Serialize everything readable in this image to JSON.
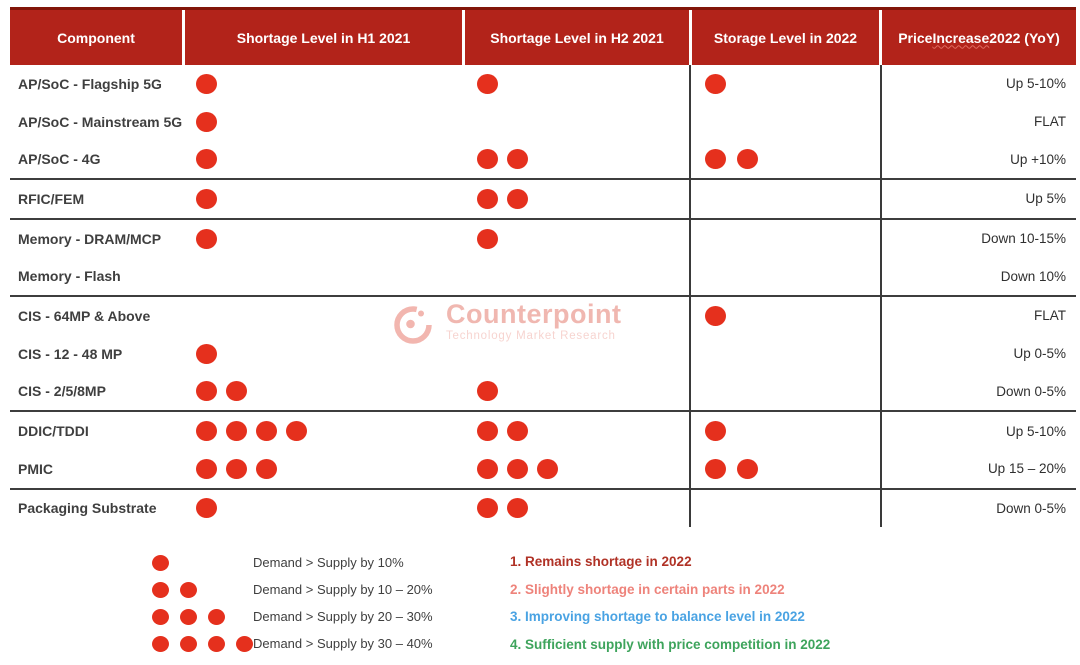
{
  "table": {
    "headers": [
      "Component",
      "Shortage Level in H1 2021",
      "Shortage Level in H2 2021",
      "Storage Level in 2022"
    ],
    "price_header": {
      "pre": "Price ",
      "underlined": "Increase",
      "post": " 2022 (YoY)"
    },
    "rows": [
      {
        "component": "AP/SoC - Flagship 5G",
        "h1": 1,
        "h2": 1,
        "storage": 1,
        "price": "Up 5-10%",
        "divider_after": false
      },
      {
        "component": "AP/SoC - Mainstream 5G",
        "h1": 1,
        "h2": 0,
        "storage": 0,
        "price": "FLAT",
        "divider_after": false
      },
      {
        "component": "AP/SoC - 4G",
        "h1": 1,
        "h2": 2,
        "storage": 2,
        "price": "Up +10%",
        "divider_after": true
      },
      {
        "component": "RFIC/FEM",
        "h1": 1,
        "h2": 2,
        "storage": 0,
        "price": "Up 5%",
        "divider_after": true
      },
      {
        "component": "Memory - DRAM/MCP",
        "h1": 1,
        "h2": 1,
        "storage": 0,
        "price": "Down 10-15%",
        "divider_after": false
      },
      {
        "component": "Memory - Flash",
        "h1": 0,
        "h2": 0,
        "storage": 0,
        "price": "Down 10%",
        "divider_after": true
      },
      {
        "component": "CIS - 64MP & Above",
        "h1": 0,
        "h2": 0,
        "storage": 1,
        "price": "FLAT",
        "divider_after": false
      },
      {
        "component": "CIS - 12 - 48 MP",
        "h1": 1,
        "h2": 0,
        "storage": 0,
        "price": "Up 0-5%",
        "divider_after": false
      },
      {
        "component": "CIS - 2/5/8MP",
        "h1": 2,
        "h2": 1,
        "storage": 0,
        "price": "Down 0-5%",
        "divider_after": true
      },
      {
        "component": "DDIC/TDDI",
        "h1": 4,
        "h2": 2,
        "storage": 1,
        "price": "Up 5-10%",
        "divider_after": false
      },
      {
        "component": "PMIC",
        "h1": 3,
        "h2": 3,
        "storage": 2,
        "price": "Up 15 – 20%",
        "divider_after": true
      },
      {
        "component": "Packaging Substrate",
        "h1": 1,
        "h2": 2,
        "storage": 0,
        "price": "Down 0-5%",
        "divider_after": false
      }
    ]
  },
  "legend": {
    "items": [
      {
        "dots": 1,
        "label": "Demand > Supply by 10%"
      },
      {
        "dots": 2,
        "label": "Demand > Supply by 10 – 20%"
      },
      {
        "dots": 3,
        "label": "Demand > Supply by 20 – 30%"
      },
      {
        "dots": 4,
        "label": "Demand > Supply by 30 – 40%"
      }
    ]
  },
  "notes": [
    {
      "text": "1. Remains shortage in 2022",
      "color": "#b03226"
    },
    {
      "text": "2. Slightly shortage in certain parts in 2022",
      "color": "#ee837b"
    },
    {
      "text": "3. Improving shortage to balance level in 2022",
      "color": "#4aa3e3"
    },
    {
      "text": "4. Sufficient supply with price competition in 2022",
      "color": "#3ea45c"
    }
  ],
  "watermark": {
    "brand": "Counterpoint",
    "tagline": "Technology Market Research"
  },
  "colors": {
    "header_bg": "#b2231a",
    "dot_red": "#e5301d",
    "divider": "#3d3d3d",
    "label_text": "#3f3f3f"
  },
  "chart_data": {
    "type": "table",
    "columns": [
      "Component",
      "Shortage Level in H1 2021",
      "Shortage Level in H2 2021",
      "Storage Level in 2022",
      "Price Increase 2022 (YoY)"
    ],
    "rows": [
      [
        "AP/SoC - Flagship 5G",
        1,
        1,
        1,
        "Up 5-10%"
      ],
      [
        "AP/SoC - Mainstream 5G",
        1,
        0,
        0,
        "FLAT"
      ],
      [
        "AP/SoC - 4G",
        1,
        2,
        2,
        "Up +10%"
      ],
      [
        "RFIC/FEM",
        1,
        2,
        0,
        "Up 5%"
      ],
      [
        "Memory - DRAM/MCP",
        1,
        1,
        0,
        "Down 10-15%"
      ],
      [
        "Memory - Flash",
        0,
        0,
        0,
        "Down 10%"
      ],
      [
        "CIS - 64MP & Above",
        0,
        0,
        1,
        "FLAT"
      ],
      [
        "CIS - 12 - 48 MP",
        1,
        0,
        0,
        "Up 0-5%"
      ],
      [
        "CIS - 2/5/8MP",
        2,
        1,
        0,
        "Down 0-5%"
      ],
      [
        "DDIC/TDDI",
        4,
        2,
        1,
        "Up 5-10%"
      ],
      [
        "PMIC",
        3,
        3,
        2,
        "Up 15 – 20%"
      ],
      [
        "Packaging Substrate",
        1,
        2,
        0,
        "Down 0-5%"
      ]
    ],
    "dot_scale": [
      "1 dot = Demand > Supply by 10%",
      "2 dots = Demand > Supply by 10 – 20%",
      "3 dots = Demand > Supply by 20 – 30%",
      "4 dots = Demand > Supply by 30 – 40%"
    ],
    "annotations": [
      "1. Remains shortage in 2022",
      "2. Slightly shortage in certain parts in 2022",
      "3. Improving shortage to balance level in 2022",
      "4. Sufficient supply with price competition in 2022"
    ]
  }
}
